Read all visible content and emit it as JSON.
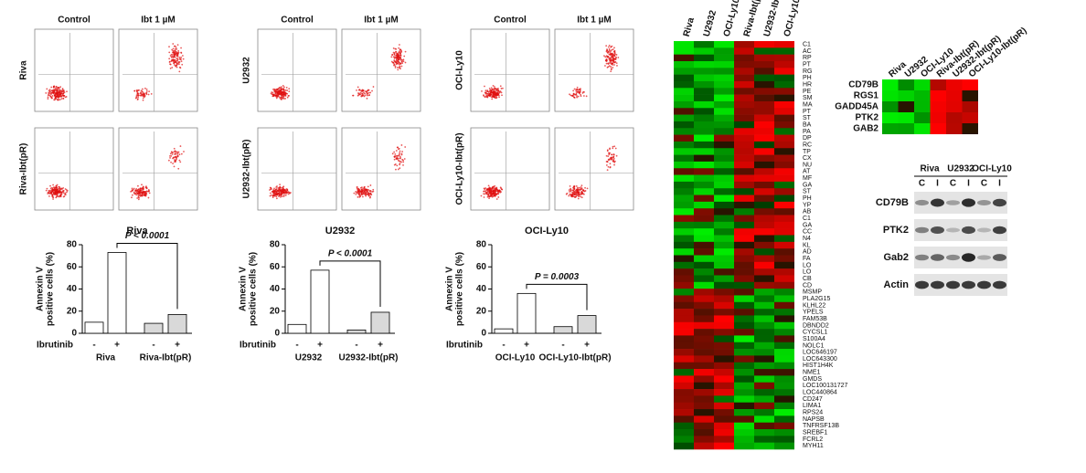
{
  "flow": [
    {
      "row_labels": [
        "Riva",
        "Riva-Ibt(pR)"
      ],
      "col_labels": [
        "Control",
        "Ibt 1 µM"
      ]
    },
    {
      "row_labels": [
        "U2932",
        "U2932-Ibt(pR)"
      ],
      "col_labels": [
        "Control",
        "Ibt 1 µM"
      ]
    },
    {
      "row_labels": [
        "OCI-Ly10",
        "OCI-Ly10-Ibt(pR)"
      ],
      "col_labels": [
        "Control",
        "Ibt 1 µM"
      ]
    }
  ],
  "chart_data": [
    {
      "type": "bar",
      "title": "Riva",
      "ylabel": [
        "Annexin V",
        "positive cells (%)"
      ],
      "treatment_label": "Ibrutinib",
      "categories": [
        "-",
        "+",
        "-",
        "+"
      ],
      "groups": [
        "Riva",
        "Riva-Ibt(pR)"
      ],
      "values": [
        10,
        73,
        9,
        17
      ],
      "colors": [
        "#ffffff",
        "#ffffff",
        "#d9d9d9",
        "#d9d9d9"
      ],
      "ylim": [
        0,
        80
      ],
      "yticks": [
        0,
        20,
        40,
        60,
        80
      ],
      "annotation": "P < 0.0001"
    },
    {
      "type": "bar",
      "title": "U2932",
      "ylabel": [
        "Annexin V",
        "positive cells (%)"
      ],
      "treatment_label": "Ibrutinib",
      "categories": [
        "-",
        "+",
        "-",
        "+"
      ],
      "groups": [
        "U2932",
        "U2932-Ibt(pR)"
      ],
      "values": [
        8,
        57,
        3,
        19
      ],
      "colors": [
        "#ffffff",
        "#ffffff",
        "#d9d9d9",
        "#d9d9d9"
      ],
      "ylim": [
        0,
        80
      ],
      "yticks": [
        0,
        20,
        40,
        60,
        80
      ],
      "annotation": "P < 0.0001"
    },
    {
      "type": "bar",
      "title": "OCI-Ly10",
      "ylabel": [
        "Annexin V",
        "positive cells (%)"
      ],
      "treatment_label": "Ibrutinib",
      "categories": [
        "-",
        "+",
        "-",
        "+"
      ],
      "groups": [
        "OCI-Ly10",
        "OCI-Ly10-Ibt(pR)"
      ],
      "values": [
        4,
        36,
        6,
        16
      ],
      "colors": [
        "#ffffff",
        "#ffffff",
        "#d9d9d9",
        "#d9d9d9"
      ],
      "ylim": [
        0,
        80
      ],
      "yticks": [
        0,
        20,
        40,
        60,
        80
      ],
      "annotation": "P = 0.0003"
    }
  ],
  "heatmap": {
    "columns": [
      "Riva",
      "U2932",
      "OCI-Ly10",
      "Riva-Ibt(pR)",
      "U2932-Ibt(pR)",
      "OCI-Ly10-Ibt(pR)"
    ],
    "genes": [
      "C1",
      "AC",
      "RP",
      "PT",
      "RG",
      "PH",
      "HR",
      "PE",
      "SM",
      "MA",
      "PT",
      "ST",
      "BA",
      "PA",
      "DP",
      "RC",
      "TP",
      "CX",
      "NU",
      "AT",
      "MF",
      "GA",
      "ST",
      "PH",
      "YP",
      "AB",
      "C1",
      "GA",
      "CC",
      "N4",
      "KL",
      "AD",
      "FA",
      "LO",
      "LO",
      "CB",
      "CD",
      "MSMP",
      "PLA2G15",
      "KLHL22",
      "YPELS",
      "FAM53B",
      "DBNDD2",
      "CYCSL1",
      "S100A4",
      "NOLC1",
      "LOC646197",
      "LOC643300",
      "HIST1H4K",
      "NME1",
      "GMDS",
      "LOC100131727",
      "LOC440864",
      "CD247",
      "LIMA1",
      "RPS24",
      "NAPSB",
      "TNFRSF13B",
      "SREBF1",
      "FCRL2",
      "MYH11"
    ]
  },
  "small_heatmap": {
    "columns": [
      "Riva",
      "U2932",
      "OCI-Ly10",
      "Riva-Ibt(pR)",
      "U2932-Ibt(pR)",
      "OCI-Ly10-Ibt(pR)"
    ],
    "genes": [
      "CD79B",
      "RGS1",
      "GADD45A",
      "PTK2",
      "GAB2"
    ]
  },
  "western": {
    "groups": [
      "Riva",
      "U2932",
      "OCI-Ly10"
    ],
    "lanes": [
      "C",
      "I",
      "C",
      "I",
      "C",
      "I"
    ],
    "proteins": [
      "CD79B",
      "PTK2",
      "Gab2",
      "Actin"
    ]
  }
}
